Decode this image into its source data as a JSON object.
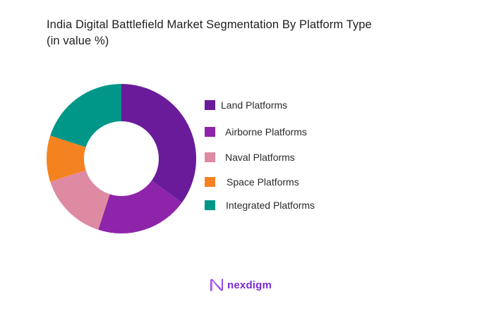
{
  "title_line1": "India Digital Battlefield Market Segmentation By Platform Type",
  "title_line2": "(in value %)",
  "brand": {
    "name": "nexdigm",
    "color": "#7a2ad6"
  },
  "chart_data": {
    "type": "pie",
    "variant": "donut",
    "title": "India Digital Battlefield Market Segmentation By Platform Type (in value %)",
    "categories": [
      "Land Platforms",
      "Airborne Platforms",
      "Naval Platforms",
      "Space Platforms",
      "Integrated Platforms"
    ],
    "values": [
      35,
      20,
      15,
      10,
      20
    ],
    "colors": [
      "#6a1b9a",
      "#8e24aa",
      "#de8aa2",
      "#f58220",
      "#009688"
    ],
    "legend_position": "right",
    "data_labels": false
  },
  "legend": [
    {
      "label": "Land Platforms",
      "color": "#6a1b9a"
    },
    {
      "label": "Airborne Platforms",
      "color": "#8e24aa"
    },
    {
      "label": "Naval Platforms",
      "color": "#de8aa2"
    },
    {
      "label": "Space Platforms",
      "color": "#f58220"
    },
    {
      "label": "Integrated Platforms",
      "color": "#009688"
    }
  ]
}
